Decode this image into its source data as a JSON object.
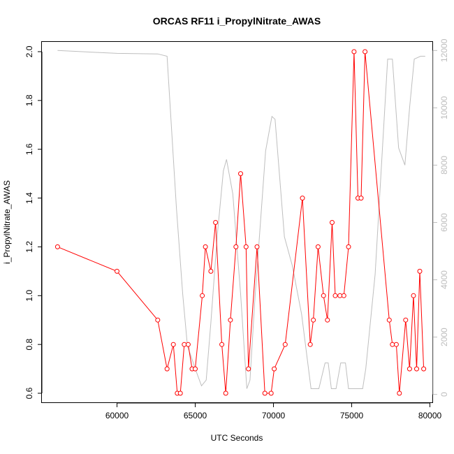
{
  "chart_data": {
    "type": "line",
    "title": "ORCAS RF11 i_PropylNitrate_AWAS",
    "xlabel": "UTC Seconds",
    "ylabel": "i_PropylNitrate_AWAS",
    "xlim": [
      55200,
      80200
    ],
    "ylim": [
      0.56,
      2.04
    ],
    "y2lim": [
      -300,
      12300
    ],
    "x_ticks": [
      60000,
      65000,
      70000,
      75000,
      80000
    ],
    "x_tick_labels": [
      "60000",
      "65000",
      "70000",
      "75000",
      "80000"
    ],
    "y_ticks": [
      0.6,
      0.8,
      1.0,
      1.2,
      1.4,
      1.6,
      1.8,
      2.0
    ],
    "y_tick_labels": [
      "0.6",
      "0.8",
      "1.0",
      "1.2",
      "1.4",
      "1.6",
      "1.8",
      "2.0"
    ],
    "y2_ticks": [
      0,
      2000,
      4000,
      6000,
      8000,
      10000,
      12000
    ],
    "y2_tick_labels": [
      "0",
      "2000",
      "4000",
      "6000",
      "8000",
      "10000",
      "12000"
    ],
    "grid": false,
    "colors": {
      "primary": "#ff0000",
      "secondary": "#bebebe"
    },
    "series": [
      {
        "axis": "left",
        "x": [
          56200,
          60000,
          62600,
          63200,
          63600,
          63850,
          64050,
          64300,
          64550,
          64800,
          65000,
          65450,
          65650,
          66000,
          66300,
          66700,
          66950,
          67250,
          67600,
          67900,
          68250,
          68400,
          68950,
          69450,
          69850,
          70050,
          70750,
          71850,
          72350,
          72550,
          72850,
          73200,
          73450,
          73750,
          73950,
          74250,
          74500,
          74800,
          75150,
          75400,
          75600,
          75850,
          77400,
          77600,
          77850,
          78050,
          78450,
          78700,
          78950,
          79150,
          79350,
          79600
        ],
        "y": [
          1.2,
          1.1,
          0.9,
          0.7,
          0.8,
          0.6,
          0.6,
          0.8,
          0.8,
          0.7,
          0.7,
          1.0,
          1.2,
          1.1,
          1.3,
          0.8,
          0.6,
          0.9,
          1.2,
          1.5,
          1.2,
          0.7,
          1.2,
          0.6,
          0.6,
          0.7,
          0.8,
          1.4,
          0.8,
          0.9,
          1.2,
          1.0,
          0.9,
          1.3,
          1.0,
          1.0,
          1.0,
          1.2,
          2.0,
          1.4,
          1.4,
          2.0,
          0.9,
          0.8,
          0.8,
          0.6,
          0.9,
          0.7,
          1.0,
          0.7,
          1.1,
          0.7
        ]
      },
      {
        "axis": "right",
        "x": [
          56200,
          60000,
          62600,
          63200,
          63800,
          64200,
          64500,
          65000,
          65400,
          65700,
          66000,
          66400,
          66800,
          67000,
          67400,
          67900,
          68300,
          68500,
          68800,
          69500,
          69900,
          70100,
          70700,
          71200,
          71800,
          72400,
          72900,
          73300,
          73500,
          73700,
          74000,
          74300,
          74600,
          74800,
          75100,
          75700,
          75900,
          76500,
          77300,
          77600,
          78000,
          78400,
          78700,
          79000,
          79400,
          79700
        ],
        "y": [
          12000,
          11900,
          11880,
          11800,
          6500,
          3500,
          1700,
          900,
          300,
          500,
          2500,
          5500,
          7800,
          8200,
          7000,
          3500,
          200,
          500,
          3200,
          8500,
          9700,
          9600,
          5500,
          4500,
          2800,
          200,
          200,
          1100,
          1100,
          200,
          200,
          1100,
          1100,
          200,
          200,
          200,
          900,
          4200,
          11700,
          11700,
          8600,
          8000,
          10000,
          11700,
          11800,
          11800
        ]
      }
    ]
  }
}
